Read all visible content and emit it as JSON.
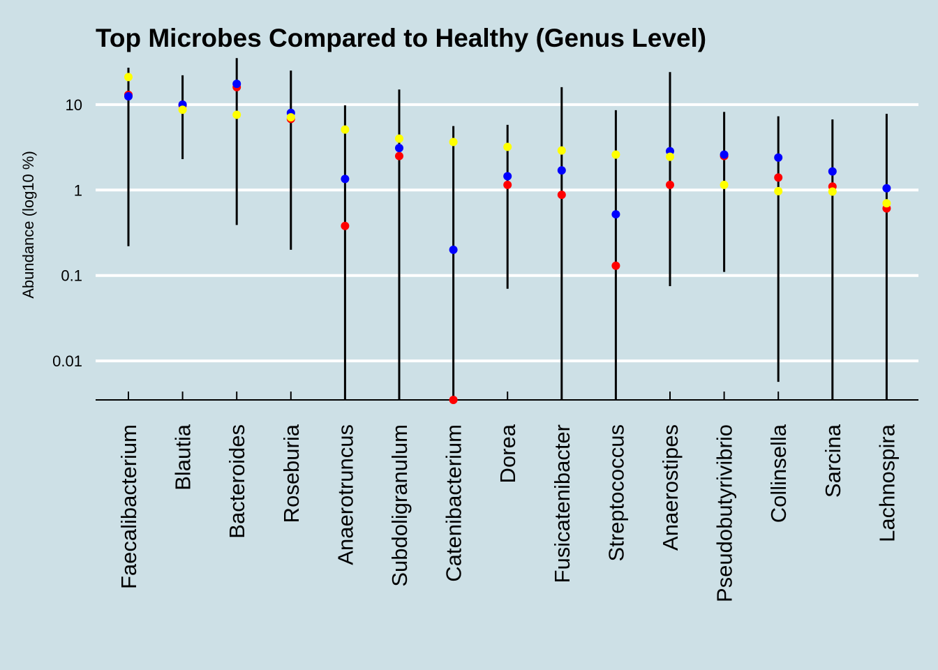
{
  "chart_data": {
    "type": "scatter",
    "title": "Top Microbes Compared to Healthy (Genus Level)",
    "xlabel": "",
    "ylabel": "Abundance (log10 %)",
    "y_scale": "log10",
    "ylim": [
      0.0035,
      32
    ],
    "y_ticks": [
      0.01,
      0.1,
      1,
      10
    ],
    "y_tick_labels": [
      "0.01",
      "0.1",
      "1",
      "10"
    ],
    "grid": "horizontal",
    "background_color": "#cde0e6",
    "grid_color": "#ffffff",
    "categories": [
      "Faecalibacterium",
      "Blautia",
      "Bacteroides",
      "Roseburia",
      "Anaerotruncus",
      "Subdoligranulum",
      "Catenibacterium",
      "Dorea",
      "Fusicatenibacter",
      "Streptococcus",
      "Anaerostipes",
      "Pseudobutyrivibrio",
      "Collinsella",
      "Sarcina",
      "Lachnospira"
    ],
    "range_low": [
      0.22,
      2.3,
      0.39,
      0.2,
      0.0035,
      0.0035,
      0.0035,
      0.07,
      0.0035,
      0.0035,
      0.075,
      0.11,
      0.0057,
      0.0035,
      0.0035
    ],
    "range_high": [
      27,
      22,
      35,
      25,
      9.8,
      15,
      5.6,
      5.8,
      16,
      8.6,
      24,
      8.2,
      7.3,
      6.7,
      7.8
    ],
    "series": [
      {
        "color": "#ff0000",
        "values": [
          13,
          9.8,
          16,
          6.8,
          0.38,
          2.5,
          0.0035,
          1.15,
          0.88,
          0.13,
          1.15,
          2.5,
          1.4,
          1.1,
          0.61
        ]
      },
      {
        "color": "#0000ff",
        "values": [
          12.5,
          10,
          17.5,
          8,
          1.35,
          3.1,
          0.2,
          1.45,
          1.7,
          0.52,
          2.85,
          2.6,
          2.4,
          1.65,
          1.05
        ]
      },
      {
        "color": "#ffff00",
        "values": [
          21,
          8.7,
          7.6,
          7.1,
          5.1,
          4,
          3.65,
          3.2,
          2.9,
          2.6,
          2.45,
          1.15,
          0.97,
          0.96,
          0.7
        ]
      }
    ]
  }
}
